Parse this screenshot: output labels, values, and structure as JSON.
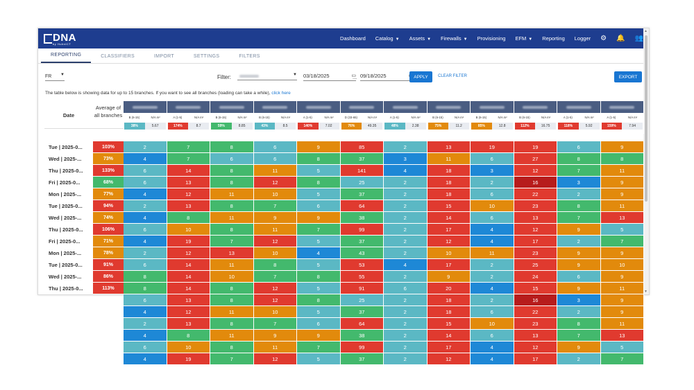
{
  "app": {
    "logo": "DNA",
    "logo_sub": "by HuhnICT",
    "nav": [
      {
        "label": "Dashboard",
        "caret": false
      },
      {
        "label": "Catalog",
        "caret": true
      },
      {
        "label": "Assets",
        "caret": true
      },
      {
        "label": "Firewalls",
        "caret": true
      },
      {
        "label": "Provisioning",
        "caret": false
      },
      {
        "label": "EFM",
        "caret": true
      },
      {
        "label": "Reporting",
        "caret": false
      },
      {
        "label": "Logger",
        "caret": false
      }
    ]
  },
  "tabs": [
    "REPORTING",
    "CLASSIFIERS",
    "IMPORT",
    "SETTINGS",
    "FILTERS"
  ],
  "filters": {
    "lang": "FR",
    "filter_label": "Filter:",
    "date_from": "03/18/2025",
    "date_sep": "...",
    "date_to": "09/18/2025",
    "apply": "APPLY",
    "clear": "CLEAR FILTER",
    "export": "EXPORT"
  },
  "note": {
    "text": "The table below is showing data for up to 15 branches. If you want to see all branches (loading can take a while),",
    "link": "click here"
  },
  "table": {
    "date_header": "Date",
    "avg_header": "Average of all branches",
    "na_label": "N/A m²",
    "branches": [
      {
        "cat": "B (6-15)",
        "pct": "38%",
        "na": "5.67",
        "pc": "#5bb8c4"
      },
      {
        "cat": "A (1-5)",
        "pct": "174%",
        "na": "8.7",
        "pc": "#e03a2f"
      },
      {
        "cat": "B (6-15)",
        "pct": "59%",
        "na": "8.85",
        "pc": "#43b96d"
      },
      {
        "cat": "B (6-15)",
        "pct": "43%",
        "na": "8.5",
        "pc": "#5bb8c4"
      },
      {
        "cat": "A (1-5)",
        "pct": "140%",
        "na": "7.02",
        "pc": "#e03a2f"
      },
      {
        "cat": "D (33-65)",
        "pct": "76%",
        "na": "49.35",
        "pc": "#e28a0c"
      },
      {
        "cat": "A (1-5)",
        "pct": "48%",
        "na": "2.38",
        "pc": "#5bb8c4"
      },
      {
        "cat": "B (6-15)",
        "pct": "75%",
        "na": "11.2",
        "pc": "#e28a0c"
      },
      {
        "cat": "B (6-15)",
        "pct": "85%",
        "na": "12.8",
        "pc": "#e28a0c"
      },
      {
        "cat": "B (6-15)",
        "pct": "112%",
        "na": "16.75",
        "pc": "#e03a2f"
      },
      {
        "cat": "A (1-5)",
        "pct": "118%",
        "na": "5.92",
        "pc": "#e03a2f"
      },
      {
        "cat": "A (1-5)",
        "pct": "159%",
        "na": "7.94",
        "pc": "#e03a2f"
      }
    ],
    "rows": [
      {
        "date": "Tue | 2025-0...",
        "avg": "103%",
        "cells": [
          2,
          7,
          8,
          6,
          9,
          85,
          2,
          13,
          19,
          19,
          6,
          9
        ]
      },
      {
        "date": "Wed | 2025-...",
        "avg": "73%",
        "cells": [
          4,
          7,
          6,
          6,
          8,
          37,
          3,
          11,
          6,
          27,
          8,
          8
        ]
      },
      {
        "date": "Thu | 2025-0...",
        "avg": "133%",
        "cells": [
          6,
          14,
          8,
          11,
          5,
          141,
          4,
          18,
          3,
          12,
          7,
          11
        ]
      },
      {
        "date": "Fri | 2025-0...",
        "avg": "68%",
        "cells": [
          6,
          13,
          8,
          12,
          8,
          25,
          2,
          18,
          2,
          16,
          3,
          9
        ]
      },
      {
        "date": "Mon | 2025-...",
        "avg": "77%",
        "cells": [
          4,
          12,
          11,
          10,
          5,
          37,
          2,
          18,
          6,
          22,
          2,
          9
        ]
      },
      {
        "date": "Tue | 2025-0...",
        "avg": "94%",
        "cells": [
          2,
          13,
          8,
          7,
          6,
          64,
          2,
          15,
          10,
          23,
          8,
          11
        ]
      },
      {
        "date": "Wed | 2025-...",
        "avg": "74%",
        "cells": [
          4,
          8,
          11,
          9,
          9,
          38,
          2,
          14,
          6,
          13,
          7,
          13
        ]
      },
      {
        "date": "Thu | 2025-0...",
        "avg": "106%",
        "cells": [
          6,
          10,
          8,
          11,
          7,
          99,
          2,
          17,
          4,
          12,
          9,
          5
        ]
      },
      {
        "date": "Fri | 2025-0...",
        "avg": "71%",
        "cells": [
          4,
          19,
          7,
          12,
          5,
          37,
          2,
          12,
          4,
          17,
          2,
          7
        ]
      },
      {
        "date": "Mon | 2025-...",
        "avg": "78%",
        "cells": [
          2,
          12,
          13,
          10,
          4,
          43,
          2,
          10,
          11,
          23,
          9,
          9
        ]
      },
      {
        "date": "Tue | 2025-0...",
        "avg": "91%",
        "cells": [
          6,
          14,
          11,
          8,
          5,
          53,
          4,
          17,
          2,
          25,
          9,
          10
        ]
      },
      {
        "date": "Wed | 2025-...",
        "avg": "86%",
        "cells": [
          8,
          14,
          10,
          7,
          8,
          55,
          2,
          9,
          2,
          24,
          6,
          9
        ]
      },
      {
        "date": "Thu | 2025-0...",
        "avg": "113%",
        "cells": [
          8,
          14,
          8,
          12,
          5,
          91,
          6,
          20,
          4,
          15,
          9,
          11
        ]
      },
      {
        "date": "",
        "avg": "",
        "cells": [
          6,
          13,
          8,
          12,
          8,
          25,
          2,
          18,
          2,
          16,
          3,
          9
        ]
      },
      {
        "date": "",
        "avg": "",
        "cells": [
          4,
          12,
          11,
          10,
          5,
          37,
          2,
          18,
          6,
          22,
          2,
          9
        ]
      },
      {
        "date": "",
        "avg": "",
        "cells": [
          2,
          13,
          8,
          7,
          6,
          64,
          2,
          15,
          10,
          23,
          8,
          11
        ]
      },
      {
        "date": "",
        "avg": "",
        "cells": [
          4,
          8,
          11,
          9,
          9,
          38,
          2,
          14,
          6,
          13,
          7,
          13
        ]
      },
      {
        "date": "",
        "avg": "",
        "cells": [
          6,
          10,
          8,
          11,
          7,
          99,
          2,
          17,
          4,
          12,
          9,
          5
        ]
      },
      {
        "date": "",
        "avg": "",
        "cells": [
          4,
          19,
          7,
          12,
          5,
          37,
          2,
          12,
          4,
          17,
          2,
          7
        ]
      }
    ],
    "colors": {
      "blue": "#1e88d6",
      "teal": "#5bb8c4",
      "green": "#43b96d",
      "orange": "#e28a0c",
      "red": "#e03a2f",
      "darkred": "#b71c1c"
    }
  }
}
